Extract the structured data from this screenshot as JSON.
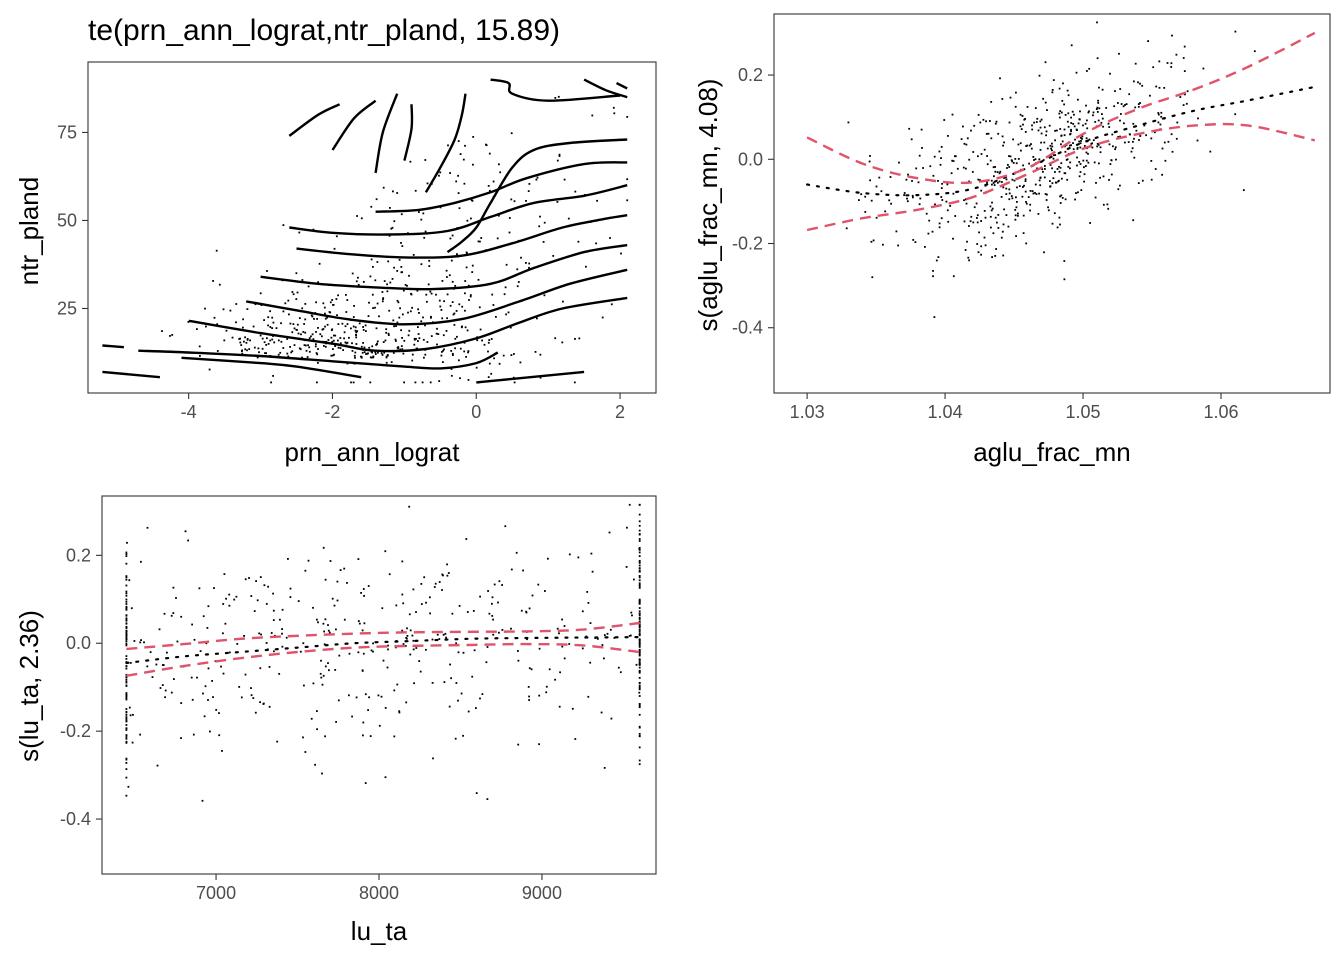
{
  "chart_data": [
    {
      "type": "contour",
      "title": "te(prn_ann_lograt,ntr_pland, 15.89)",
      "xlabel": "prn_ann_lograt",
      "ylabel": "ntr_pland",
      "xlim": [
        -5.4,
        2.5
      ],
      "ylim": [
        1,
        95
      ],
      "x_ticks": [
        -4,
        -2,
        0,
        2
      ],
      "y_ticks": [
        25,
        50,
        75
      ],
      "contours": [
        [
          [
            -5.2,
            14.5
          ],
          [
            -4.9,
            14
          ]
        ],
        [
          [
            -4.7,
            13
          ],
          [
            -4,
            12.5
          ],
          [
            -3,
            11.5
          ],
          [
            -2,
            10
          ],
          [
            -1,
            8.5
          ],
          [
            -0.5,
            8
          ],
          [
            0,
            9.5
          ],
          [
            0.3,
            12.5
          ]
        ],
        [
          [
            -5.2,
            7
          ],
          [
            -4.4,
            5.5
          ]
        ],
        [
          [
            -4.1,
            11
          ],
          [
            -3,
            9.5
          ],
          [
            -2.5,
            8.5
          ],
          [
            -1.6,
            5.5
          ]
        ],
        [
          [
            -4.0,
            21.5
          ],
          [
            -3,
            18
          ],
          [
            -2,
            15
          ],
          [
            -1.4,
            13
          ],
          [
            -0.7,
            13.5
          ],
          [
            0,
            16.5
          ],
          [
            0.6,
            21
          ],
          [
            1.2,
            25
          ],
          [
            2.1,
            28
          ]
        ],
        [
          [
            -3.2,
            27
          ],
          [
            -2.5,
            24.5
          ],
          [
            -1.8,
            22
          ],
          [
            -1,
            20.5
          ],
          [
            -0.2,
            22
          ],
          [
            0.6,
            27
          ],
          [
            1.3,
            32
          ],
          [
            2.1,
            36
          ]
        ],
        [
          [
            -3.0,
            34
          ],
          [
            -2.2,
            32
          ],
          [
            -1.4,
            31
          ],
          [
            -0.6,
            30.5
          ],
          [
            0.2,
            32
          ],
          [
            0.8,
            36.5
          ],
          [
            1.5,
            41
          ],
          [
            2.1,
            43
          ]
        ],
        [
          [
            -2.5,
            42
          ],
          [
            -1.8,
            40.5
          ],
          [
            -1.0,
            39.5
          ],
          [
            -0.2,
            40
          ],
          [
            0.5,
            43.5
          ],
          [
            1.2,
            48
          ],
          [
            1.8,
            50.5
          ],
          [
            2.1,
            51.5
          ]
        ],
        [
          [
            -2.6,
            48
          ],
          [
            -2,
            46.5
          ],
          [
            -1.2,
            46
          ],
          [
            -0.4,
            47
          ],
          [
            0.2,
            51
          ],
          [
            0.8,
            55
          ],
          [
            1.5,
            57
          ],
          [
            2.1,
            60
          ]
        ],
        [
          [
            -1.4,
            52.5
          ],
          [
            -0.8,
            53
          ],
          [
            -0.3,
            55
          ],
          [
            0.2,
            58
          ],
          [
            0.7,
            62
          ],
          [
            1.5,
            66
          ],
          [
            2.1,
            66.5
          ]
        ],
        [
          [
            -0.4,
            41
          ],
          [
            -0.2,
            44
          ],
          [
            0,
            48
          ],
          [
            0.2,
            55
          ],
          [
            0.5,
            65
          ],
          [
            0.8,
            70
          ],
          [
            1.3,
            72
          ],
          [
            2.1,
            73
          ]
        ],
        [
          [
            -0.7,
            58
          ],
          [
            -0.5,
            65
          ],
          [
            -0.3,
            73
          ],
          [
            -0.2,
            80
          ],
          [
            -0.15,
            86
          ]
        ],
        [
          [
            -1.0,
            67
          ],
          [
            -0.9,
            76
          ],
          [
            -0.9,
            83
          ]
        ],
        [
          [
            -1.4,
            63.5
          ],
          [
            -1.3,
            75
          ],
          [
            -1.1,
            86
          ]
        ],
        [
          [
            -2.0,
            70
          ],
          [
            -1.7,
            79
          ],
          [
            -1.4,
            84
          ]
        ],
        [
          [
            -2.6,
            74
          ],
          [
            -2.2,
            80
          ],
          [
            -1.9,
            83
          ]
        ],
        [
          [
            0.2,
            90
          ],
          [
            0.45,
            89
          ],
          [
            0.5,
            86
          ],
          [
            1.0,
            84
          ],
          [
            2.0,
            85.5
          ]
        ],
        [
          [
            1.5,
            90
          ],
          [
            1.8,
            87
          ],
          [
            2.1,
            85
          ]
        ],
        [
          [
            1.95,
            89
          ],
          [
            2.1,
            87.5
          ]
        ],
        [
          [
            0,
            4
          ],
          [
            1,
            6
          ],
          [
            1.5,
            7
          ]
        ]
      ]
    },
    {
      "type": "line",
      "xlabel": "aglu_frac_mn",
      "ylabel": "s(aglu_frac_mn, 4.08)",
      "xlim": [
        1.0276,
        1.0679
      ],
      "ylim": [
        -0.555,
        0.345
      ],
      "x_ticks": [
        1.03,
        1.04,
        1.05,
        1.06
      ],
      "y_ticks": [
        -0.4,
        -0.2,
        0.0,
        0.2
      ],
      "x_tick_labels": [
        "1.03",
        "1.04",
        "1.05",
        "1.06"
      ],
      "y_tick_labels": [
        "-0.4",
        "-0.2",
        "0.0",
        "0.2"
      ],
      "x": [
        1.03,
        1.034,
        1.038,
        1.042,
        1.046,
        1.05,
        1.054,
        1.058,
        1.062,
        1.0668
      ],
      "series": [
        {
          "style": "dotted",
          "color": "#000000",
          "values": [
            -0.06,
            -0.08,
            -0.085,
            -0.07,
            -0.02,
            0.04,
            0.08,
            0.115,
            0.14,
            0.172
          ]
        },
        {
          "style": "dashed",
          "color": "#DF536B",
          "values": [
            0.052,
            -0.01,
            -0.045,
            -0.055,
            -0.02,
            0.06,
            0.12,
            0.165,
            0.22,
            0.3
          ]
        },
        {
          "style": "dashed",
          "color": "#DF536B",
          "values": [
            -0.168,
            -0.14,
            -0.12,
            -0.09,
            -0.035,
            0.025,
            0.06,
            0.08,
            0.08,
            0.045
          ]
        }
      ],
      "residuals": {
        "n": 620,
        "x_center": 1.047,
        "x_spread": 0.0055,
        "y_spread": 0.09
      }
    },
    {
      "type": "line",
      "xlabel": "lu_ta",
      "ylabel": "s(lu_ta, 2.36)",
      "xlim": [
        6300,
        9700
      ],
      "ylim": [
        -0.525,
        0.335
      ],
      "x_ticks": [
        7000,
        8000,
        9000
      ],
      "y_ticks": [
        -0.4,
        -0.2,
        0.0,
        0.2
      ],
      "x_tick_labels": [
        "7000",
        "8000",
        "9000"
      ],
      "y_tick_labels": [
        "-0.4",
        "-0.2",
        "0.0",
        "0.2"
      ],
      "x": [
        6450,
        6800,
        7150,
        7500,
        7850,
        8200,
        8550,
        8900,
        9250,
        9600
      ],
      "series": [
        {
          "style": "dotted",
          "color": "#000000",
          "values": [
            -0.045,
            -0.03,
            -0.02,
            -0.01,
            0.0,
            0.005,
            0.01,
            0.012,
            0.013,
            0.014
          ]
        },
        {
          "style": "dashed",
          "color": "#DF536B",
          "values": [
            -0.013,
            -0.002,
            0.01,
            0.017,
            0.022,
            0.025,
            0.026,
            0.027,
            0.031,
            0.046
          ]
        },
        {
          "style": "dashed",
          "color": "#DF536B",
          "values": [
            -0.074,
            -0.052,
            -0.034,
            -0.02,
            -0.01,
            -0.006,
            -0.004,
            -0.002,
            -0.005,
            -0.02
          ]
        }
      ],
      "residuals": {
        "n": 600,
        "x_center": 8000,
        "x_spread": 1600,
        "y_spread": 0.12
      }
    }
  ]
}
